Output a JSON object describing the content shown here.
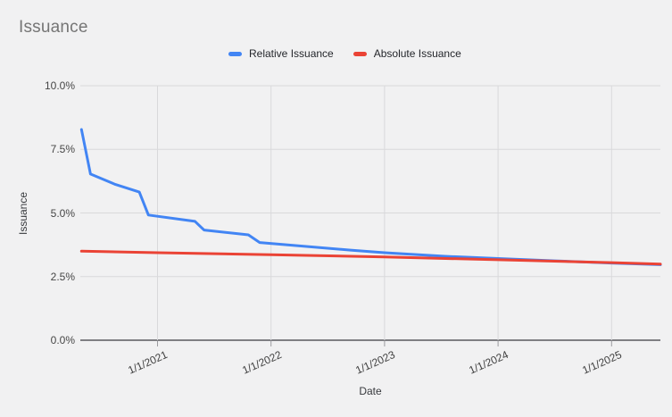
{
  "title": "Issuance",
  "colors": {
    "background": "#F1F1F2",
    "gridline": "#D9D9DB",
    "baseline": "#7F7F83",
    "axis_tick": "#9B9B9F",
    "title_text": "#757575",
    "axis_label_text": "#3F3F3F",
    "series_blue": "#4285F4",
    "series_red": "#EA4335"
  },
  "chart_data": {
    "type": "line",
    "title": "Issuance",
    "xlabel": "Date",
    "ylabel": "Issuance",
    "grid": true,
    "legend_position": "top",
    "x_axis": {
      "unit": "decimal_year",
      "range": [
        2020.32,
        2025.43
      ],
      "ticks": [
        {
          "value": 2021,
          "label": "1/1/2021"
        },
        {
          "value": 2022,
          "label": "1/1/2022"
        },
        {
          "value": 2023,
          "label": "1/1/2023"
        },
        {
          "value": 2024,
          "label": "1/1/2024"
        },
        {
          "value": 2025,
          "label": "1/1/2025"
        }
      ]
    },
    "y_axis": {
      "unit": "percent",
      "range": [
        0,
        10
      ],
      "ticks": [
        {
          "value": 10,
          "label": "10.0%"
        },
        {
          "value": 7.5,
          "label": "7.5%"
        },
        {
          "value": 5,
          "label": "5.0%"
        },
        {
          "value": 2.5,
          "label": "2.5%"
        },
        {
          "value": 0,
          "label": "0.0%"
        }
      ]
    },
    "series": [
      {
        "name": "Relative Issuance",
        "color": "#4285F4",
        "points": [
          [
            2020.33,
            8.28
          ],
          [
            2020.41,
            6.53
          ],
          [
            2020.63,
            6.12
          ],
          [
            2020.84,
            5.82
          ],
          [
            2020.92,
            4.92
          ],
          [
            2021.33,
            4.67
          ],
          [
            2021.41,
            4.33
          ],
          [
            2021.8,
            4.14
          ],
          [
            2021.9,
            3.84
          ],
          [
            2022.1,
            3.76
          ],
          [
            2022.7,
            3.54
          ],
          [
            2023.0,
            3.44
          ],
          [
            2023.53,
            3.3
          ],
          [
            2024.0,
            3.21
          ],
          [
            2024.5,
            3.12
          ],
          [
            2025.0,
            3.03
          ],
          [
            2025.43,
            2.97
          ]
        ]
      },
      {
        "name": "Absolute Issuance",
        "color": "#EA4335",
        "points": [
          [
            2020.33,
            3.5
          ],
          [
            2021.0,
            3.44
          ],
          [
            2022.0,
            3.36
          ],
          [
            2023.0,
            3.27
          ],
          [
            2024.0,
            3.16
          ],
          [
            2025.0,
            3.05
          ],
          [
            2025.43,
            2.99
          ]
        ]
      }
    ]
  }
}
